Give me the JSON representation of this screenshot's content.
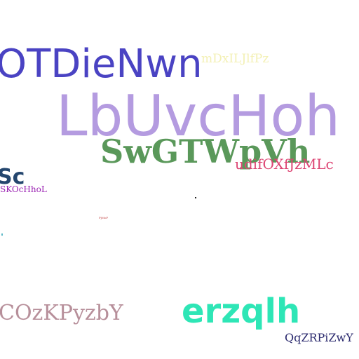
{
  "words": {
    "otdienwn": {
      "text": "OTDieNwn",
      "color": "#4a43c3"
    },
    "dpxiljlfpz": {
      "text": "mDxILJlfPz",
      "color": "#f3f0b4"
    },
    "lbuvchoh": {
      "text": "LbUvcHoh",
      "color": "#b49be0"
    },
    "swgtwpvh": {
      "text": "SwGTWpVh",
      "color": "#5a985a"
    },
    "udifoxf": {
      "text": "udifOXfJzMLc",
      "color": "#dd4674"
    },
    "sc": {
      "text": "Sc",
      "color": "#24466e"
    },
    "skocchhol": {
      "text": "SKOcHhoL",
      "color": "#9b23b3"
    },
    "tiny": {
      "text": "PjMoF",
      "color": "#c04040"
    },
    "cozkpyzby": {
      "text": "COzKPyzbY",
      "color": "#b78f9a"
    },
    "erzqlh": {
      "text": "erzqlh",
      "color": "#2ee6b6"
    },
    "qqzrpizwy": {
      "text": "QqZRPiZwY",
      "color": "#2b2a6e"
    }
  }
}
